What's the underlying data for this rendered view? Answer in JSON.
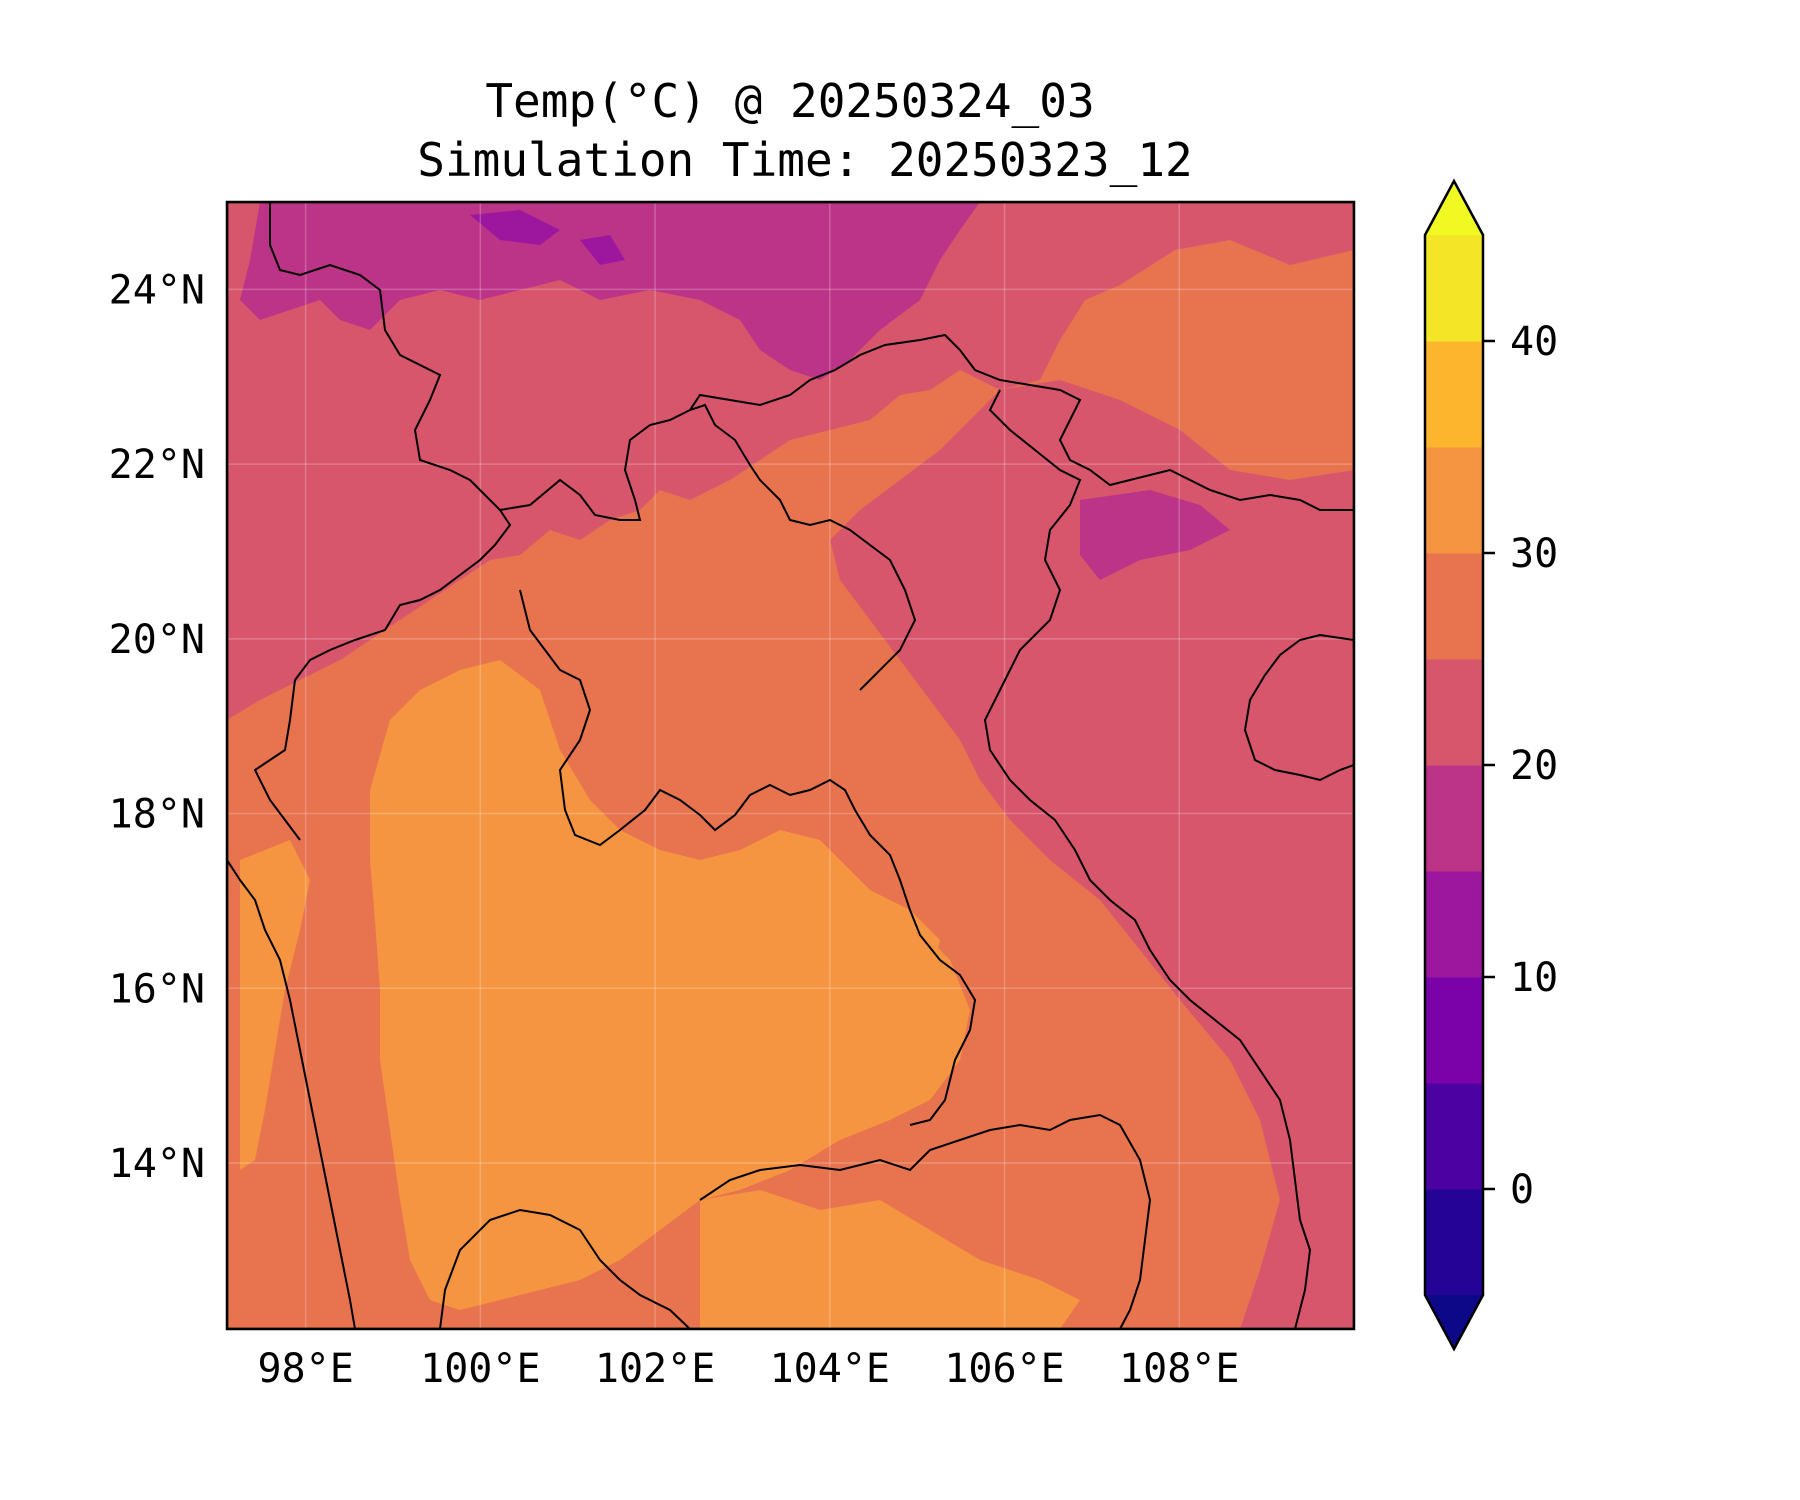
{
  "title_line1": "Temp(°C) @ 20250324_03",
  "title_line2": "Simulation Time: 20250323_12",
  "map": {
    "lon_range": [
      97.1,
      110.0
    ],
    "lat_range": [
      12.1,
      25.0
    ],
    "lon_ticks": [
      {
        "value": 98,
        "label": "98°E"
      },
      {
        "value": 100,
        "label": "100°E"
      },
      {
        "value": 102,
        "label": "102°E"
      },
      {
        "value": 104,
        "label": "104°E"
      },
      {
        "value": 106,
        "label": "106°E"
      },
      {
        "value": 108,
        "label": "108°E"
      }
    ],
    "lat_ticks": [
      {
        "value": 24,
        "label": "24°N"
      },
      {
        "value": 22,
        "label": "22°N"
      },
      {
        "value": 20,
        "label": "20°N"
      },
      {
        "value": 18,
        "label": "18°N"
      },
      {
        "value": 16,
        "label": "16°N"
      },
      {
        "value": 14,
        "label": "14°N"
      }
    ],
    "gridlines": true,
    "background_fill": "#e57058"
  },
  "colorbar": {
    "range": [
      -5,
      45
    ],
    "levels": [
      -5,
      0,
      5,
      10,
      15,
      20,
      25,
      30,
      35,
      40,
      45
    ],
    "colors": [
      "#230497",
      "#4c02a1",
      "#7b02a8",
      "#9c179e",
      "#bc3488",
      "#d7566c",
      "#e8734f",
      "#f69541",
      "#fdb52e",
      "#f3e627"
    ],
    "under_color": "#0d0887",
    "over_color": "#f0f921",
    "ticks": [
      {
        "value": 0,
        "label": "0"
      },
      {
        "value": 10,
        "label": "10"
      },
      {
        "value": 20,
        "label": "20"
      },
      {
        "value": 30,
        "label": "30"
      },
      {
        "value": 40,
        "label": "40"
      }
    ]
  }
}
